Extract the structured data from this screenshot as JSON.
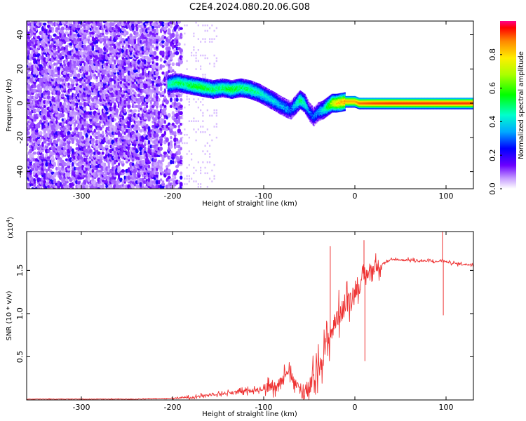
{
  "title": "C2E4.2024.080.20.06.G08",
  "chart_data": [
    {
      "type": "heatmap",
      "xlabel": "Height of straight line (km)",
      "ylabel": "Frequency (Hz)",
      "xlim": [
        -360,
        130
      ],
      "ylim": [
        -50,
        48
      ],
      "x_ticks": [
        -300,
        -200,
        -100,
        0,
        100
      ],
      "x_tick_labels": [
        "-300",
        "-200",
        "-100",
        "0",
        "100"
      ],
      "y_ticks": [
        -40,
        -20,
        0,
        20,
        40
      ],
      "y_tick_labels": [
        "-40",
        "-20",
        "0",
        "20",
        "40"
      ],
      "colorbar": {
        "label": "Normalized spectral amplitude",
        "range": [
          0,
          1
        ],
        "ticks": [
          0.0,
          0.2,
          0.4,
          0.6,
          0.8
        ],
        "tick_labels": [
          "0.0",
          "0.2",
          "0.4",
          "0.6",
          "0.8"
        ]
      },
      "noise_region_x": [
        -360,
        -190
      ],
      "signal_ridge": {
        "x": [
          -205,
          -195,
          -185,
          -175,
          -165,
          -155,
          -145,
          -135,
          -125,
          -115,
          -105,
          -95,
          -88,
          -82,
          -75,
          -70,
          -60,
          -55,
          -50,
          -45,
          -40,
          -35,
          -30,
          -25,
          -20,
          -10,
          0,
          5,
          20,
          40,
          60,
          80,
          100,
          120,
          130
        ],
        "y": [
          11,
          12,
          11,
          10,
          9,
          8,
          9,
          8,
          9,
          8,
          6,
          3,
          1,
          -1,
          -3,
          -4,
          2,
          0,
          -5,
          -8,
          -5,
          -4,
          -2,
          0,
          0,
          1,
          1,
          0,
          0,
          0,
          0,
          0,
          0,
          0,
          0
        ],
        "amplitude": [
          0.45,
          0.5,
          0.5,
          0.55,
          0.55,
          0.5,
          0.5,
          0.55,
          0.5,
          0.5,
          0.45,
          0.4,
          0.4,
          0.35,
          0.35,
          0.3,
          0.5,
          0.45,
          0.3,
          0.3,
          0.35,
          0.4,
          0.55,
          0.7,
          0.8,
          0.85,
          0.85,
          0.9,
          0.92,
          0.93,
          0.93,
          0.93,
          0.93,
          0.93,
          0.93
        ]
      }
    },
    {
      "type": "line",
      "xlabel": "Height of straight line (km)",
      "ylabel": "SNR (10 * v/v)",
      "yscale_label": "(x10",
      "yscale_exp": "4",
      "xlim": [
        -360,
        130
      ],
      "ylim": [
        0,
        1.95
      ],
      "x_ticks": [
        -300,
        -200,
        -100,
        0,
        100
      ],
      "x_tick_labels": [
        "-300",
        "-200",
        "-100",
        "0",
        "100"
      ],
      "y_ticks": [
        0.5,
        1.0,
        1.5
      ],
      "y_tick_labels": [
        "0.5",
        "1.0",
        "1.5"
      ],
      "series": [
        {
          "color": "#ee3333",
          "x": [
            -360,
            -320,
            -280,
            -240,
            -200,
            -180,
            -160,
            -140,
            -120,
            -100,
            -90,
            -80,
            -75,
            -70,
            -65,
            -60,
            -55,
            -50,
            -45,
            -40,
            -35,
            -30,
            -25,
            -20,
            -15,
            -10,
            -5,
            0,
            5,
            10,
            15,
            20,
            25,
            30,
            35,
            40,
            45,
            50,
            60,
            70,
            80,
            90,
            95,
            100,
            110,
            120,
            130
          ],
          "y": [
            0.01,
            0.01,
            0.01,
            0.01,
            0.02,
            0.03,
            0.06,
            0.08,
            0.1,
            0.13,
            0.16,
            0.22,
            0.35,
            0.28,
            0.18,
            0.12,
            0.1,
            0.14,
            0.25,
            0.38,
            0.52,
            0.68,
            0.8,
            0.95,
            1.02,
            1.08,
            1.2,
            1.25,
            1.3,
            1.42,
            1.48,
            1.52,
            1.55,
            1.58,
            1.6,
            1.62,
            1.63,
            1.62,
            1.62,
            1.61,
            1.61,
            1.6,
            1.62,
            1.6,
            1.58,
            1.57,
            1.57
          ],
          "spikes": [
            {
              "x": -27,
              "y": 1.78
            },
            {
              "x": 10,
              "y": 1.85
            },
            {
              "x": 11,
              "y": 0.45
            },
            {
              "x": 96,
              "y": 1.98
            },
            {
              "x": 97,
              "y": 0.98
            }
          ]
        }
      ]
    }
  ]
}
